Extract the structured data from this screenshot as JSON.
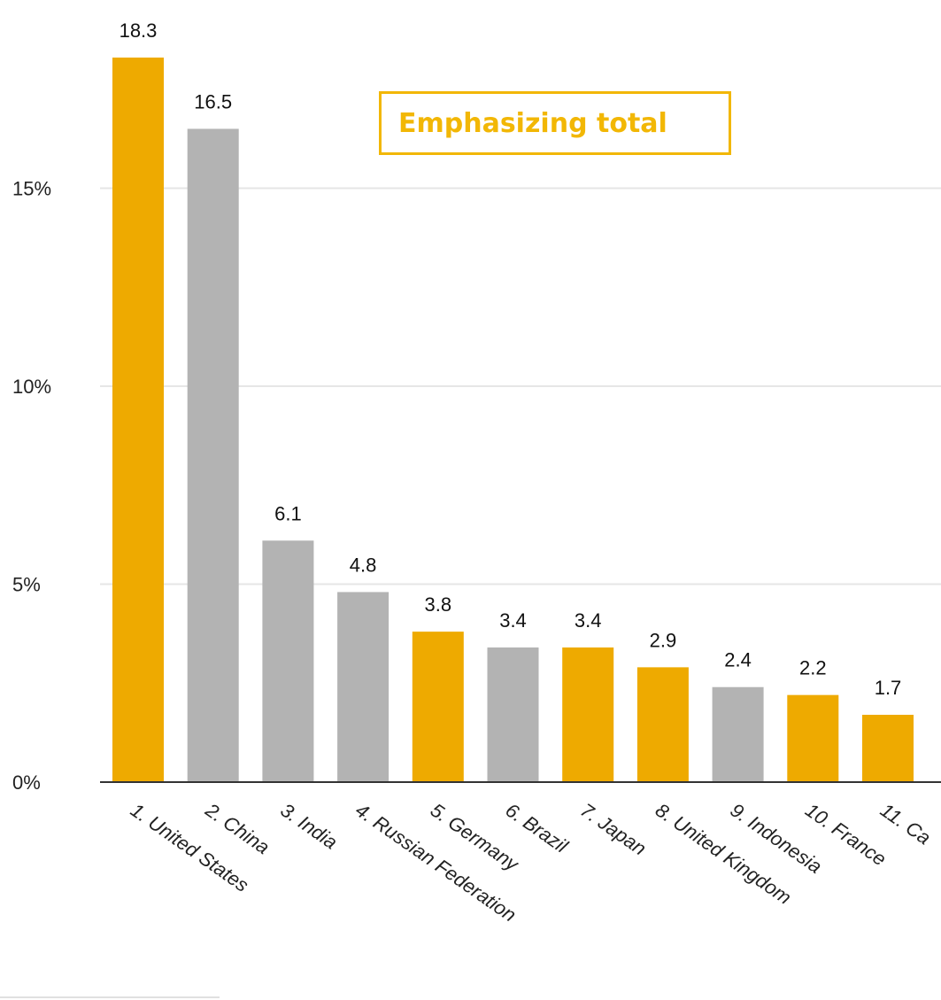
{
  "annotation": "Emphasizing total",
  "colors": {
    "highlight": "#EEAA00",
    "muted": "#B3B3B3",
    "grid": "#E6E6E6",
    "axis": "#333333",
    "annotation_border": "#F2B705"
  },
  "chart_data": {
    "type": "bar",
    "categories": [
      "1. United States",
      "2. China",
      "3. India",
      "4. Russian Federation",
      "5. Germany",
      "6. Brazil",
      "7. Japan",
      "8. United Kingdom",
      "9. Indonesia",
      "10. France",
      "11. Ca"
    ],
    "values": [
      18.3,
      16.5,
      6.1,
      4.8,
      3.8,
      3.4,
      3.4,
      2.9,
      2.4,
      2.2,
      1.7
    ],
    "value_labels": [
      "18.3",
      "16.5",
      "6.1",
      "4.8",
      "3.8",
      "3.4",
      "3.4",
      "2.9",
      "2.4",
      "2.2",
      "1.7"
    ],
    "highlighted": [
      true,
      false,
      false,
      false,
      true,
      false,
      true,
      true,
      false,
      true,
      true
    ],
    "y_ticks": [
      0,
      5,
      10,
      15
    ],
    "y_tick_labels": [
      "0%",
      "5%",
      "10%",
      "15%"
    ],
    "ylim": [
      0,
      20
    ],
    "grid": true,
    "title": "",
    "xlabel": "",
    "ylabel": ""
  }
}
